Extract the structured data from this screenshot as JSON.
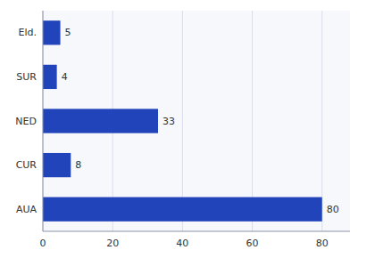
{
  "chart_data": {
    "type": "bar",
    "orientation": "horizontal",
    "categories": [
      "AUA",
      "CUR",
      "NED",
      "SUR",
      "Eld."
    ],
    "values": [
      80,
      8,
      33,
      4,
      5
    ],
    "color": "#2244BB",
    "xlim": [
      0,
      88
    ],
    "xticks": [
      0,
      20,
      40,
      60,
      80
    ],
    "grid": true,
    "data_labels": true
  }
}
